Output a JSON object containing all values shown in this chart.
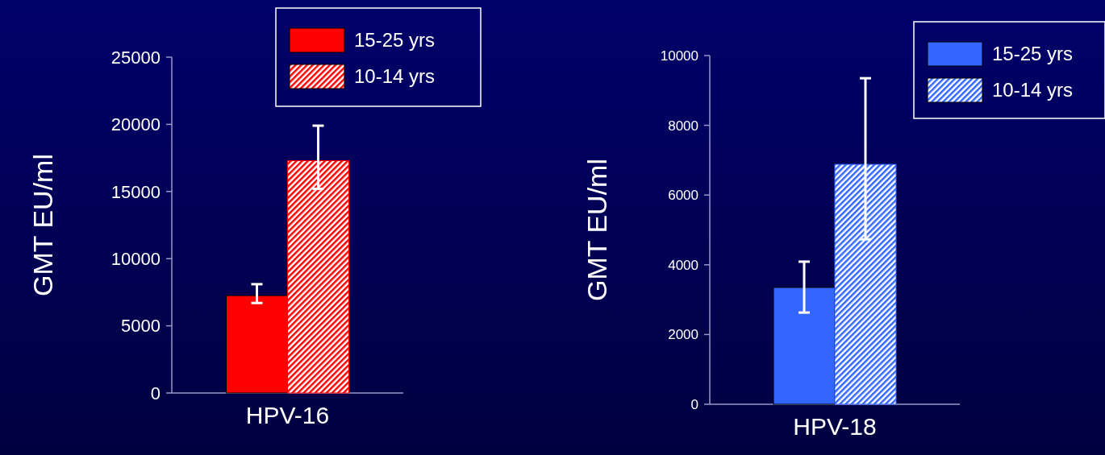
{
  "chart_data": [
    {
      "type": "bar",
      "categories": [
        "HPV-16"
      ],
      "ylabel": "GMT EU/ml",
      "ylim": [
        0,
        25000
      ],
      "yticks": [
        0,
        5000,
        10000,
        15000,
        20000,
        25000
      ],
      "legend": "top right",
      "series": [
        {
          "name": "15-25 yrs",
          "color": "#ff0000",
          "values": [
            7250
          ],
          "errors": [
            [
              6700,
              8100
            ]
          ]
        },
        {
          "name": "10-14 yrs",
          "color": "#ff0000",
          "values": [
            17300
          ],
          "errors": [
            [
              15200,
              19900
            ]
          ]
        }
      ]
    },
    {
      "type": "bar",
      "categories": [
        "HPV-18"
      ],
      "ylabel": "GMT EU/ml",
      "ylim": [
        0,
        10000
      ],
      "yticks": [
        0,
        2000,
        4000,
        6000,
        8000,
        10000
      ],
      "legend": "top right",
      "series": [
        {
          "name": "15-25 yrs",
          "color": "#3366ff",
          "values": [
            3350
          ],
          "errors": [
            [
              2630,
              4090
            ]
          ]
        },
        {
          "name": "10-14 yrs",
          "color": "#3366ff",
          "values": [
            6880
          ],
          "errors": [
            [
              4730,
              9350
            ]
          ]
        }
      ]
    }
  ]
}
